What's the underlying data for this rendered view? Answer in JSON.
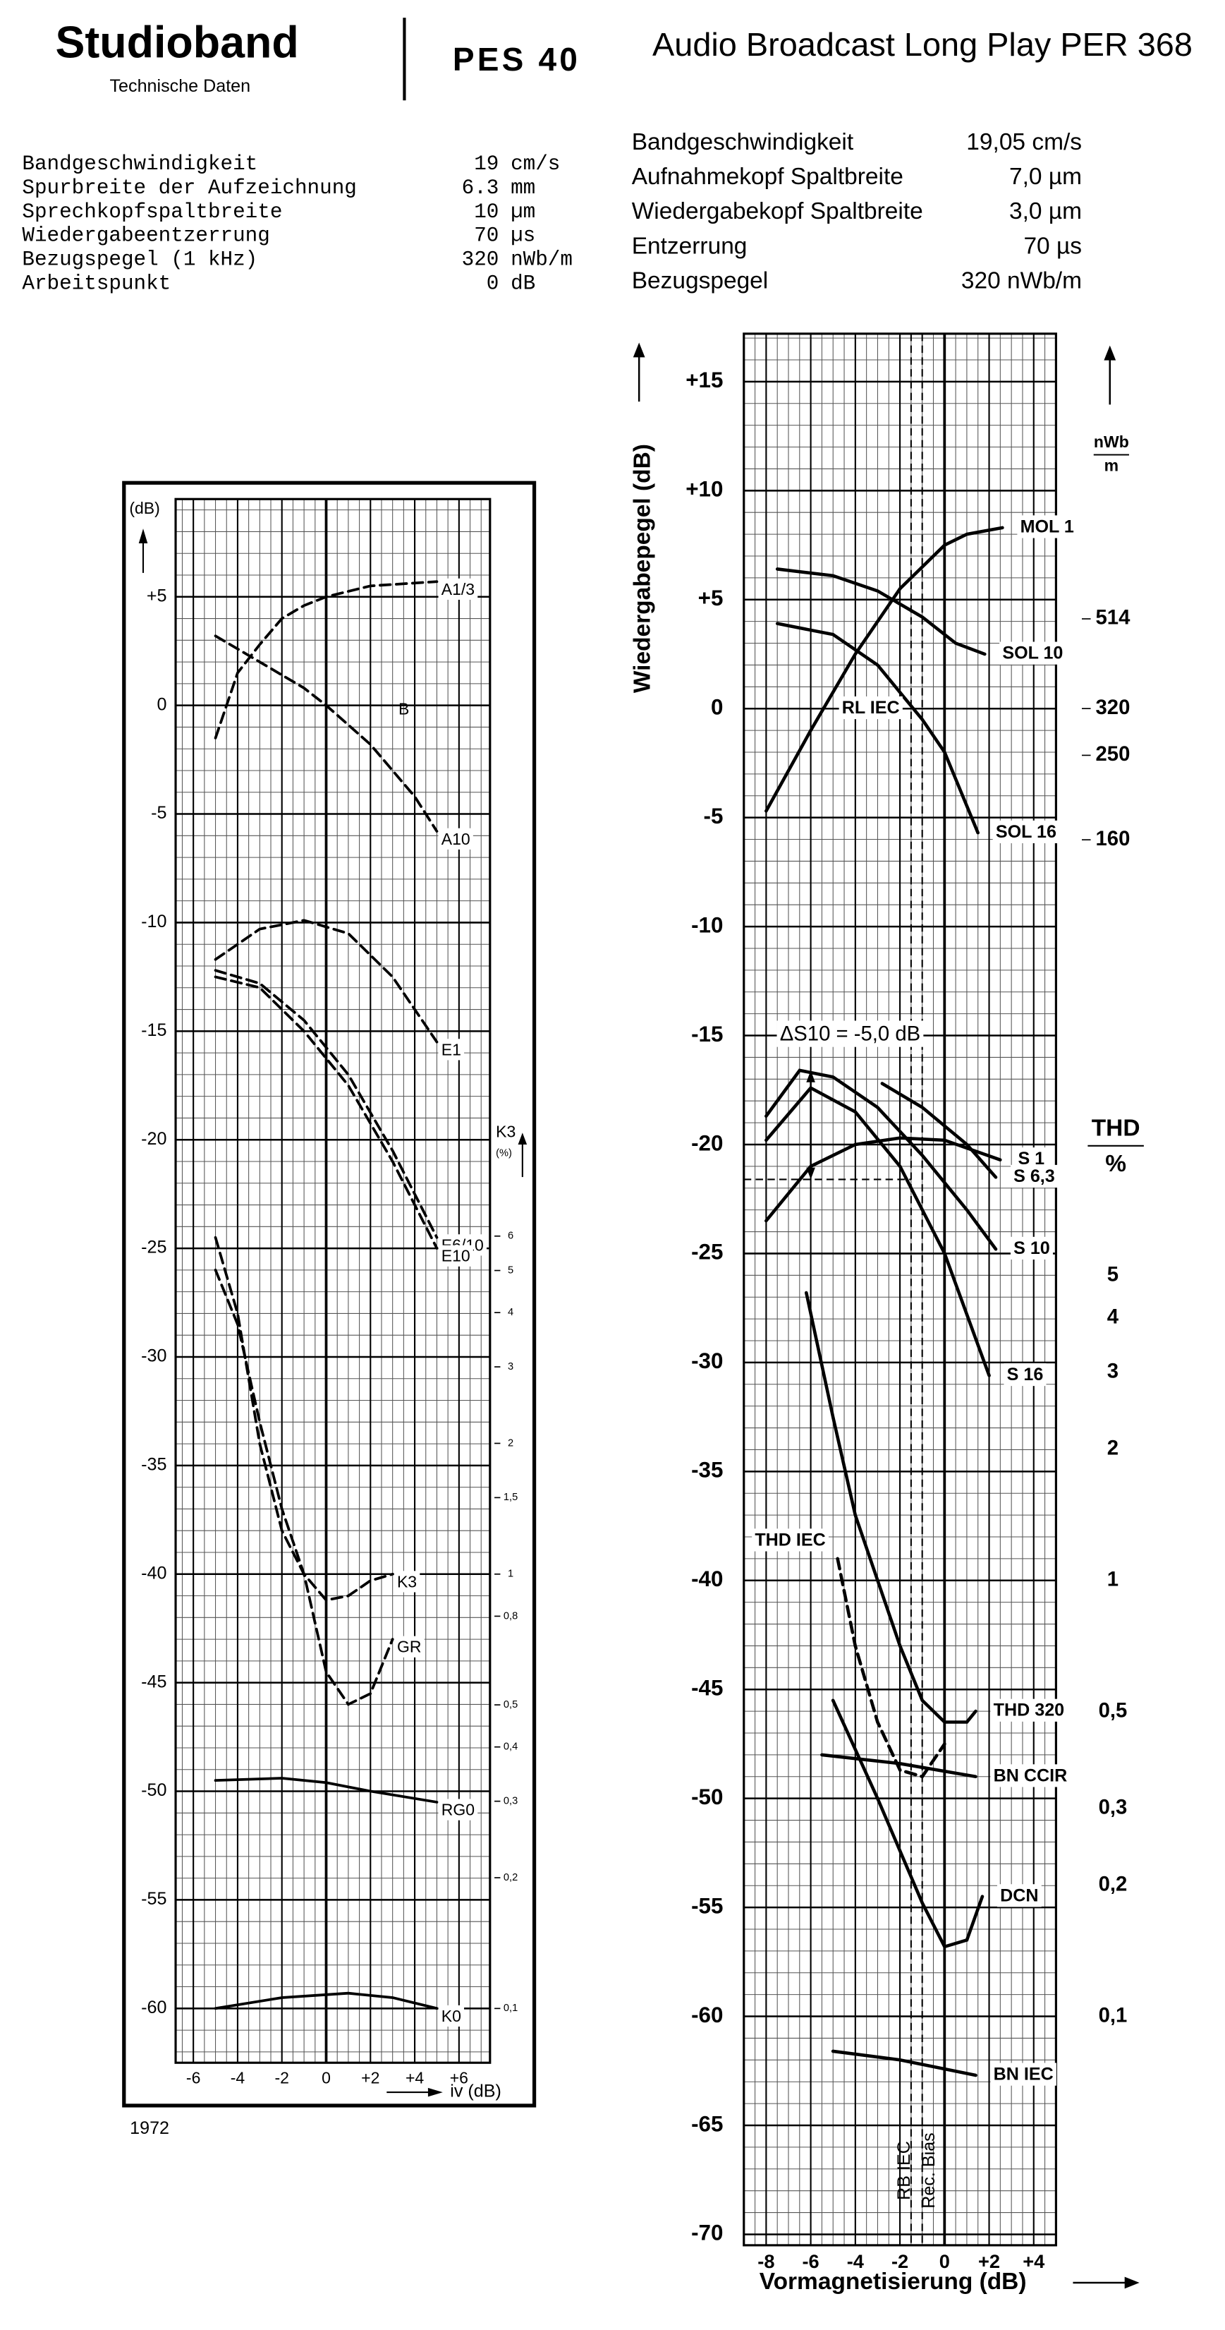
{
  "header": {
    "brand": "Studioband",
    "subtitle": "Technische Daten",
    "model": "PES 40",
    "product": "Audio Broadcast Long Play PER 368"
  },
  "specs_left": [
    [
      "Bandgeschwindigkeit",
      "19",
      "cm/s"
    ],
    [
      "Spurbreite der Aufzeichnung",
      "6.3",
      "mm"
    ],
    [
      "Sprechkopfspaltbreite",
      "10",
      "µm"
    ],
    [
      "Wiedergabeentzerrung",
      "70",
      "µs"
    ],
    [
      "Bezugspegel (1 kHz)",
      "320",
      "nWb/m"
    ],
    [
      "Arbeitspunkt",
      "0",
      "dB"
    ]
  ],
  "specs_right": [
    [
      "Bandgeschwindigkeit",
      "19,05 cm/s"
    ],
    [
      "Aufnahmekopf Spaltbreite",
      "7,0 µm"
    ],
    [
      "Wiedergabekopf Spaltbreite",
      "3,0 µm"
    ],
    [
      "Entzerrung",
      "70 µs"
    ],
    [
      "Bezugspegel",
      "320 nWb/m"
    ]
  ],
  "chart_data": [
    {
      "type": "line",
      "ylabel": "(dB)",
      "xlabel": "iv (dB)",
      "year": "1972",
      "color": "#000000",
      "grid": true,
      "xlim": [
        -6.8,
        7.4
      ],
      "ylim": [
        -62.5,
        9.5
      ],
      "xticks": [
        -6,
        -4,
        -2,
        0,
        {
          "value": 2,
          "label": "+2"
        },
        {
          "value": 4,
          "label": "+4"
        },
        {
          "value": 6,
          "label": "+6"
        }
      ],
      "yticks": [
        {
          "value": 5,
          "label": "+5"
        },
        0,
        -5,
        -10,
        -15,
        -20,
        -25,
        -30,
        -35,
        -40,
        -45,
        -50,
        -55,
        -60
      ],
      "y2label": [
        "K3",
        "(%)"
      ],
      "y2scale": "log",
      "y2lim": [
        0.075,
        298.5
      ],
      "y2ticks": [
        6,
        5,
        4,
        3,
        2,
        {
          "value": 1.5,
          "label": "1,5"
        },
        1,
        {
          "value": 0.8,
          "label": "0,8"
        },
        {
          "value": 0.5,
          "label": "0,5"
        },
        {
          "value": 0.4,
          "label": "0,4"
        },
        {
          "value": 0.3,
          "label": "0,3"
        },
        {
          "value": 0.2,
          "label": "0,2"
        },
        {
          "value": 0.1,
          "label": "0,1"
        }
      ],
      "annotations": [
        "B"
      ],
      "series": [
        {
          "name": "A1/3",
          "dash": true,
          "x": [
            -5,
            -4,
            -3,
            -2,
            -1,
            0,
            2,
            5
          ],
          "values": [
            -1.5,
            1.5,
            2.8,
            4,
            4.6,
            5,
            5.5,
            5.7
          ]
        },
        {
          "name": "A10",
          "dash": true,
          "x": [
            -5,
            -3,
            -1,
            0,
            2,
            4,
            5
          ],
          "values": [
            3.2,
            2,
            0.8,
            0,
            -1.8,
            -4.2,
            -5.8
          ]
        },
        {
          "name": "E1",
          "dash": true,
          "x": [
            -5,
            -3,
            -1,
            1,
            3,
            5
          ],
          "values": [
            -11.7,
            -10.3,
            -9.9,
            -10.5,
            -12.5,
            -15.5
          ]
        },
        {
          "name": "E6/10",
          "dash": true,
          "x": [
            -5,
            -3,
            -1,
            1,
            3,
            5
          ],
          "values": [
            -12.2,
            -12.8,
            -14.5,
            -17,
            -20.5,
            -24.5
          ]
        },
        {
          "name": "E10",
          "dash": true,
          "x": [
            -5,
            -3,
            -1,
            1,
            3,
            5
          ],
          "values": [
            -12.5,
            -13,
            -15,
            -17.5,
            -21,
            -25
          ]
        },
        {
          "name": "K3",
          "dash": true,
          "x": [
            -5,
            -4,
            -3,
            -2,
            -1,
            0,
            1,
            2,
            3
          ],
          "values": [
            -26,
            -28.5,
            -33,
            -37,
            -40,
            -41.2,
            -41,
            -40.3,
            -40
          ]
        },
        {
          "name": "GR",
          "dash": true,
          "x": [
            -5,
            -4,
            -3,
            -2,
            -1,
            0,
            1,
            2,
            3
          ],
          "values": [
            -24.5,
            -28,
            -34,
            -38,
            -40,
            -44.5,
            -46,
            -45.5,
            -43
          ]
        },
        {
          "name": "RG0",
          "dash": false,
          "x": [
            -5,
            -2,
            0,
            2,
            5
          ],
          "values": [
            -49.5,
            -49.4,
            -49.6,
            -50,
            -50.5
          ]
        },
        {
          "name": "K0",
          "dash": false,
          "x": [
            -5,
            -2,
            1,
            3,
            5
          ],
          "values": [
            -60,
            -59.5,
            -59.3,
            -59.5,
            -60
          ]
        }
      ]
    },
    {
      "type": "line",
      "ylabel": "Wiedergabepegel (dB)",
      "xlabel": "Vormagnetisierung (dB)",
      "color": "#000000",
      "grid": true,
      "xlim": [
        -9,
        5
      ],
      "ylim": [
        -70.5,
        17.2
      ],
      "xticks": [
        -8,
        -6,
        -4,
        -2,
        0,
        {
          "value": 2,
          "label": "+2"
        },
        {
          "value": 4,
          "label": "+4"
        }
      ],
      "yticks": [
        {
          "value": 15,
          "label": "+15"
        },
        {
          "value": 10,
          "label": "+10"
        },
        {
          "value": 5,
          "label": "+5"
        },
        0,
        -5,
        -10,
        -15,
        -20,
        -25,
        -30,
        -35,
        -40,
        -45,
        -50,
        -55,
        -60,
        -65,
        -70
      ],
      "y2label": [
        "nWb",
        "m"
      ],
      "y2scale": "log",
      "y2lim": [
        0.0955,
        2318
      ],
      "y2ticks": [
        514,
        320,
        250,
        160
      ],
      "y3label": [
        "THD",
        "%"
      ],
      "y3scale": "log",
      "y3lim": [
        0.02985,
        724.4
      ],
      "y3ticks": [
        5,
        4,
        3,
        2,
        1,
        {
          "value": 0.5,
          "label": "0,5"
        },
        {
          "value": 0.3,
          "label": "0,3"
        },
        {
          "value": 0.2,
          "label": "0,2"
        },
        {
          "value": 0.1,
          "label": "0,1"
        }
      ],
      "annotations": [
        "RL IEC",
        "ΔS10 = -5,0 dB"
      ],
      "delta_arrow": {
        "x": -6,
        "from": -16.6,
        "to": -21.6
      },
      "vlines": [
        {
          "x": -1.5,
          "label": "RB IEC"
        },
        {
          "x": -1,
          "label": "Rec. Bias"
        }
      ],
      "series": [
        {
          "name": "MOL 1",
          "dash": false,
          "x": [
            -8,
            -6,
            -4,
            -2,
            0,
            1,
            2.6
          ],
          "values": [
            -4.7,
            -1,
            2.5,
            5.5,
            7.5,
            8,
            8.3
          ]
        },
        {
          "name": "SOL 10",
          "dash": false,
          "x": [
            -7.5,
            -5,
            -3,
            -1,
            0.5,
            1.8
          ],
          "values": [
            6.4,
            6.1,
            5.4,
            4.2,
            3,
            2.5
          ]
        },
        {
          "name": "SOL 16",
          "dash": false,
          "x": [
            -7.5,
            -5,
            -3,
            -1,
            0,
            1.5
          ],
          "values": [
            3.9,
            3.4,
            2,
            -0.5,
            -2,
            -5.7
          ]
        },
        {
          "name": "S 1",
          "dash": false,
          "x": [
            -8,
            -6,
            -4,
            -2,
            0,
            2.5
          ],
          "values": [
            -23.5,
            -21,
            -20,
            -19.7,
            -19.8,
            -20.7
          ]
        },
        {
          "name": "S 6,3",
          "dash": false,
          "x": [
            -2.8,
            -1,
            1,
            2.3
          ],
          "values": [
            -17.2,
            -18.3,
            -20,
            -21.5
          ]
        },
        {
          "name": "S 10",
          "dash": false,
          "x": [
            -8,
            -6.5,
            -5,
            -3,
            -1,
            1,
            2.3
          ],
          "values": [
            -18.7,
            -16.6,
            -16.9,
            -18.3,
            -20.5,
            -23,
            -24.8
          ]
        },
        {
          "name": "S 16",
          "dash": false,
          "x": [
            -8,
            -6,
            -4,
            -2,
            0,
            2
          ],
          "values": [
            -19.8,
            -17.4,
            -18.5,
            -21,
            -25,
            -30.6
          ]
        },
        {
          "name": "THD IEC",
          "dash": true,
          "x": [
            -4.8,
            -4,
            -3,
            -2,
            -1,
            0
          ],
          "values": [
            -39,
            -43,
            -46.5,
            -48.7,
            -49,
            -47.5
          ]
        },
        {
          "name": "THD 320",
          "dash": false,
          "x": [
            -6.2,
            -5,
            -4,
            -2,
            -1,
            0,
            1,
            1.4
          ],
          "values": [
            -26.8,
            -32.5,
            -37,
            -43,
            -45.5,
            -46.5,
            -46.5,
            -46
          ]
        },
        {
          "name": "BN CCIR",
          "dash": false,
          "x": [
            -5.5,
            -2,
            1.4
          ],
          "values": [
            -48,
            -48.4,
            -49
          ]
        },
        {
          "name": "DCN",
          "dash": false,
          "x": [
            -5,
            -3,
            -1,
            0,
            1,
            1.7
          ],
          "values": [
            -45.5,
            -50,
            -54.8,
            -56.8,
            -56.5,
            -54.5
          ]
        },
        {
          "name": "BN IEC",
          "dash": false,
          "x": [
            -5,
            -2,
            1.4
          ],
          "values": [
            -61.6,
            -62,
            -62.7
          ]
        }
      ]
    }
  ]
}
